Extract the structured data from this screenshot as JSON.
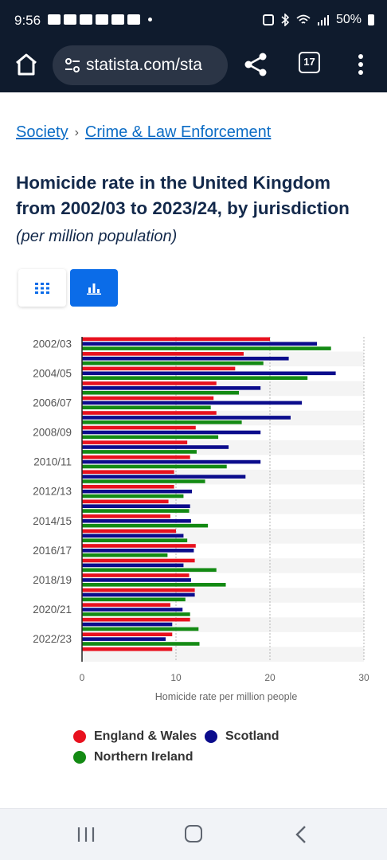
{
  "status_bar": {
    "time": "9:56",
    "battery": "50%"
  },
  "browser": {
    "url": "statista.com/sta",
    "tab_count": "17"
  },
  "breadcrumb": {
    "items": [
      "Society",
      "Crime & Law Enforcement"
    ],
    "separator": "›"
  },
  "title": "Homicide rate in the United Kingdom from 2002/03 to 2023/24, by jurisdiction",
  "subtitle": "(per million population)",
  "chart_data": {
    "type": "bar",
    "orientation": "horizontal",
    "categories": [
      "2002/03",
      "2003/04",
      "2004/05",
      "2005/06",
      "2006/07",
      "2007/08",
      "2008/09",
      "2009/10",
      "2010/11",
      "2011/12",
      "2012/13",
      "2013/14",
      "2014/15",
      "2015/16",
      "2016/17",
      "2017/18",
      "2018/19",
      "2019/20",
      "2020/21",
      "2021/22",
      "2022/23",
      "2023/24"
    ],
    "category_labels_shown": [
      "2002/03",
      "",
      "2004/05",
      "",
      "2006/07",
      "",
      "2008/09",
      "",
      "2010/11",
      "",
      "2012/13",
      "",
      "2014/15",
      "",
      "2016/17",
      "",
      "2018/19",
      "",
      "2020/21",
      "",
      "2022/23",
      ""
    ],
    "series": [
      {
        "name": "England & Wales",
        "color": "#e8111e",
        "values": [
          20,
          17.2,
          16.3,
          14.3,
          14,
          14.3,
          12.1,
          11.2,
          11.5,
          9.8,
          9.8,
          9.2,
          9.4,
          10,
          12.1,
          12,
          11.4,
          12,
          9.4,
          11.5,
          9.6,
          9.6
        ]
      },
      {
        "name": "Scotland",
        "color": "#0b0c8c",
        "values": [
          25,
          22,
          27,
          19,
          23.4,
          22.2,
          19,
          15.6,
          19,
          17.4,
          11.7,
          11.5,
          11.6,
          10.8,
          11.9,
          10.8,
          11.6,
          12,
          10.7,
          9.6,
          8.9,
          null
        ]
      },
      {
        "name": "Northern Ireland",
        "color": "#138a13",
        "values": [
          26.5,
          19.3,
          24,
          16.7,
          13.7,
          17,
          14.5,
          12.2,
          15.4,
          13.1,
          10.8,
          11.4,
          13.4,
          11.2,
          9.1,
          14.3,
          15.3,
          11,
          11.5,
          12.4,
          12.5,
          null
        ]
      }
    ],
    "xlabel": "Homicide rate per million people",
    "ylabel": "",
    "xlim": [
      0,
      30
    ],
    "xticks": [
      0,
      10,
      20,
      30
    ],
    "grid": true,
    "legend_position": "bottom"
  },
  "icons": {
    "home": "home-icon",
    "share": "share-icon",
    "menu": "more-vert-icon",
    "table_view": "grid-table-icon",
    "chart_view": "bar-chart-icon"
  }
}
